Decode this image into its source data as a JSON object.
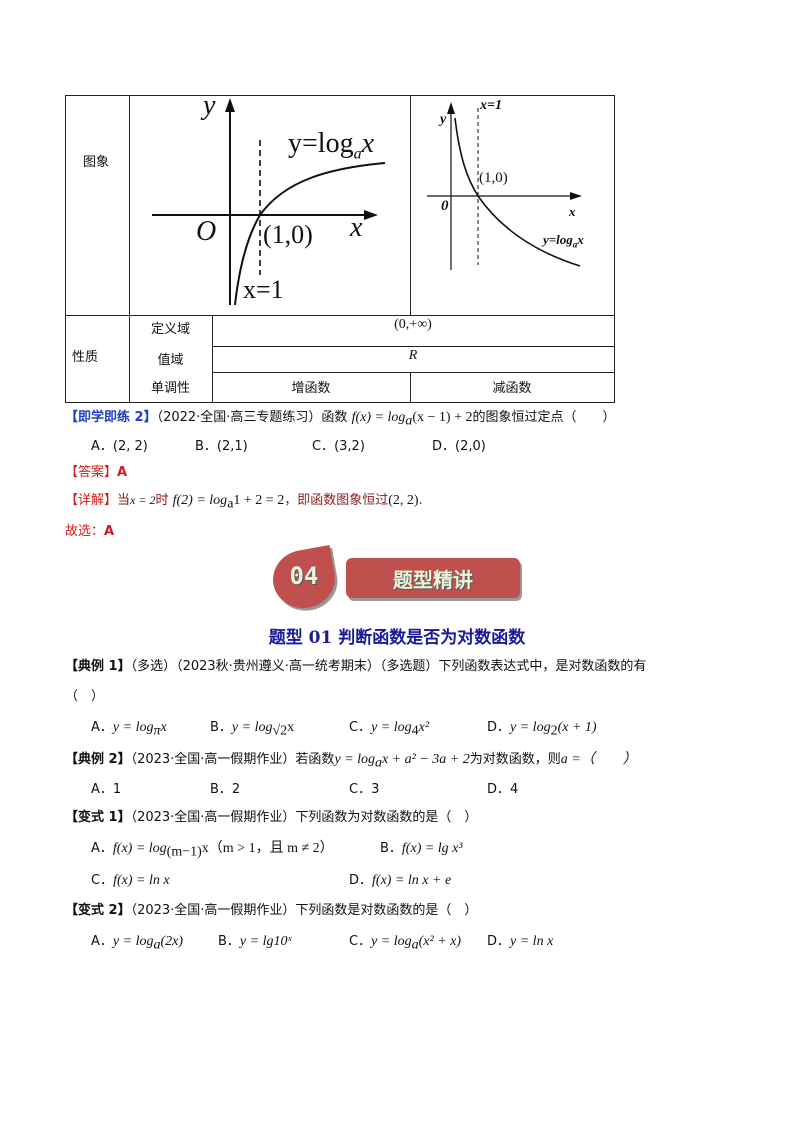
{
  "table": {
    "row_graph_label": "图象",
    "row_props_label": "性质",
    "props": [
      {
        "label": "定义域",
        "value": "(0,+∞)"
      },
      {
        "label": "值域",
        "value": "R"
      },
      {
        "label": "单调性",
        "left": "增函数",
        "right": "减函数"
      }
    ],
    "graph_left": {
      "y_label": "y",
      "func_label": "y=log",
      "func_sub": "a",
      "func_x": "x",
      "origin": "O",
      "point": "(1,0)",
      "x_label": "x",
      "asym": "x=1"
    },
    "graph_right": {
      "y_label": "y",
      "asym": "x=1",
      "point": "(1,0)",
      "origin": "0",
      "x_label": "x",
      "func_label": "y=log",
      "func_sub": "a",
      "func_x": "x"
    }
  },
  "practice2": {
    "tag": "【即学即练 2】",
    "source": "（2022·全国·高三专题练习）函数",
    "formula": "f(x) = log",
    "formula_sub": "a",
    "formula_tail": "(x − 1) + 2",
    "question_tail": "的图象恒过定点（　　）",
    "options": [
      "A．(2, 2)",
      "B．(2,1)",
      "C．(3,2)",
      "D．(2,0)"
    ],
    "answer_tag": "【答案】",
    "answer": "A",
    "detail_tag": "【详解】",
    "detail_1": "当",
    "detail_2": "x = 2",
    "detail_3": "时",
    "detail_4": "f(2) = log",
    "detail_sub": "a",
    "detail_5": "1 + 2 = 2",
    "detail_6": "，即函数图象恒过",
    "detail_7": "(2, 2)",
    "detail_8": ".",
    "choose": "故选：",
    "choose_ans": "A"
  },
  "banner": {
    "number": "04",
    "title": "题型精讲",
    "color": "#c0504d"
  },
  "section_title": "题型 01 判断函数是否为对数函数",
  "ex1": {
    "tag": "【典例 1】",
    "text": "（多选）（2023秋·贵州遵义·高一统考期末）（多选题）下列函数表达式中，是对数函数的有",
    "paren": "（　）",
    "options": [
      {
        "label": "A．",
        "f": "y = log",
        "sub": "π",
        "tail": "x"
      },
      {
        "label": "B．",
        "f": "y = log",
        "sub": "√2",
        "tail": "x"
      },
      {
        "label": "C．",
        "f": "y = log",
        "sub": "4",
        "tail": "x²"
      },
      {
        "label": "D．",
        "f": "y = log",
        "sub": "2",
        "tail": "(x + 1)"
      }
    ]
  },
  "ex2": {
    "tag": "【典例 2】",
    "text": "（2023·全国·高一假期作业）若函数",
    "formula": "y = log",
    "sub": "a",
    "formula_tail": "x + a² − 3a + 2",
    "text2": "为对数函数，则",
    "text3": "a =（　　）",
    "options": [
      "A．1",
      "B．2",
      "C．3",
      "D．4"
    ]
  },
  "var1": {
    "tag": "【变式 1】",
    "text": "（2023·全国·高一假期作业）下列函数为对数函数的是（　）",
    "options": [
      {
        "label": "A．",
        "f": "f(x) = log",
        "sub": "(m−1)",
        "tail": "x（m > 1，且 m ≠ 2）"
      },
      {
        "label": "B．",
        "f": "f(x) = lg x³",
        "sub": "",
        "tail": ""
      },
      {
        "label": "C．",
        "f": "f(x) = ln x",
        "sub": "",
        "tail": ""
      },
      {
        "label": "D．",
        "f": "f(x) = ln x + e",
        "sub": "",
        "tail": ""
      }
    ]
  },
  "var2": {
    "tag": "【变式 2】",
    "text": "（2023·全国·高一假期作业）下列函数是对数函数的是（　）",
    "options": [
      {
        "label": "A．",
        "f": "y = log",
        "sub": "a",
        "tail": "(2x)"
      },
      {
        "label": "B．",
        "f": "y = lg10ˣ",
        "sub": "",
        "tail": ""
      },
      {
        "label": "C．",
        "f": "y = log",
        "sub": "a",
        "tail": "(x² + x)"
      },
      {
        "label": "D．",
        "f": "y = ln x",
        "sub": "",
        "tail": ""
      }
    ]
  }
}
